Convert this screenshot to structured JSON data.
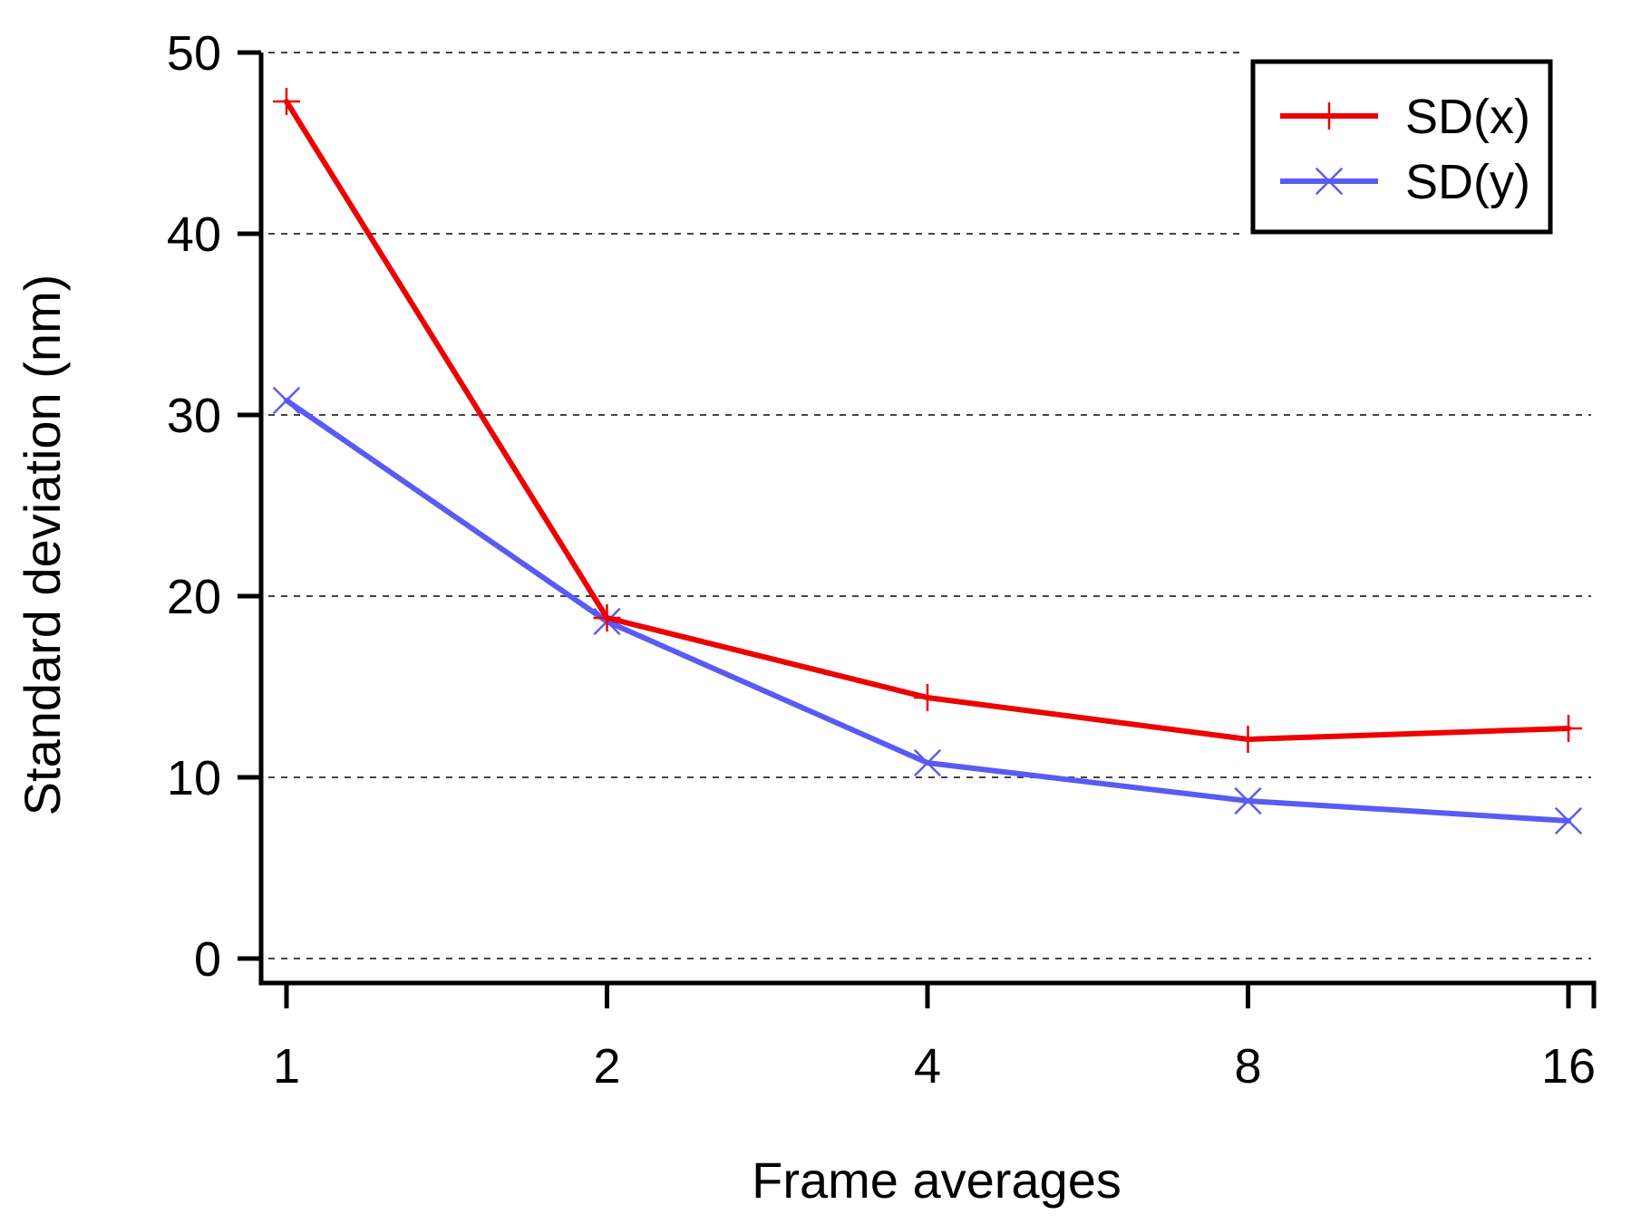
{
  "chart_data": {
    "type": "line",
    "title": "",
    "xlabel": "Frame averages",
    "ylabel": "Standard deviation (nm)",
    "x": [
      1,
      2,
      4,
      8,
      16
    ],
    "x_tick_labels": [
      "1",
      "2",
      "4",
      "8",
      "16"
    ],
    "x_scale": "log2",
    "ylim": [
      0,
      50
    ],
    "y_ticks": [
      0,
      10,
      20,
      30,
      40,
      50
    ],
    "y_tick_labels": [
      "0",
      "10",
      "20",
      "30",
      "40",
      "50"
    ],
    "grid": "horizontal-dashed",
    "legend_position": "top-right",
    "series": [
      {
        "name": "SD(x)",
        "values": [
          47.3,
          18.8,
          14.4,
          12.1,
          12.7
        ],
        "color": "#ee0000",
        "marker": "plus"
      },
      {
        "name": "SD(y)",
        "values": [
          30.8,
          18.6,
          10.8,
          8.7,
          7.6
        ],
        "color": "#5a5af5",
        "marker": "cross"
      }
    ]
  }
}
